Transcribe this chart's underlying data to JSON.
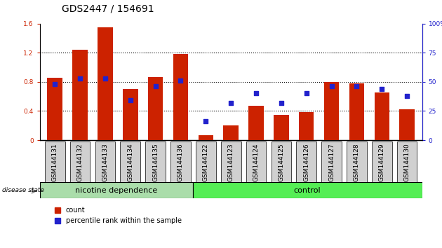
{
  "title": "GDS2447 / 154691",
  "samples": [
    "GSM144131",
    "GSM144132",
    "GSM144133",
    "GSM144134",
    "GSM144135",
    "GSM144136",
    "GSM144122",
    "GSM144123",
    "GSM144124",
    "GSM144125",
    "GSM144126",
    "GSM144127",
    "GSM144128",
    "GSM144129",
    "GSM144130"
  ],
  "count_values": [
    0.86,
    1.24,
    1.55,
    0.7,
    0.87,
    1.18,
    0.07,
    0.2,
    0.47,
    0.35,
    0.38,
    0.8,
    0.78,
    0.65,
    0.42
  ],
  "percentile_values": [
    48,
    53,
    53,
    34,
    46,
    51,
    16,
    32,
    40,
    32,
    40,
    46,
    46,
    44,
    38
  ],
  "bar_color": "#cc2200",
  "dot_color": "#2222cc",
  "plot_bg_color": "#ffffff",
  "label_bg_color": "#d0d0d0",
  "ylim_left": [
    0,
    1.6
  ],
  "ylim_right": [
    0,
    100
  ],
  "yticks_left": [
    0,
    0.4,
    0.8,
    1.2,
    1.6
  ],
  "ytick_labels_left": [
    "0",
    "0.4",
    "0.8",
    "1.2",
    "1.6"
  ],
  "yticks_right": [
    0,
    25,
    50,
    75,
    100
  ],
  "ytick_labels_right": [
    "0",
    "25",
    "50",
    "75",
    "100%"
  ],
  "group1_label": "nicotine dependence",
  "group2_label": "control",
  "group1_color": "#aaddaa",
  "group2_color": "#55ee55",
  "disease_state_label": "disease state",
  "legend_count_label": "count",
  "legend_percentile_label": "percentile rank within the sample",
  "n_group1": 6,
  "n_group2": 9,
  "title_fontsize": 10,
  "tick_fontsize": 6.5,
  "label_fontsize": 7.5,
  "group_fontsize": 8
}
